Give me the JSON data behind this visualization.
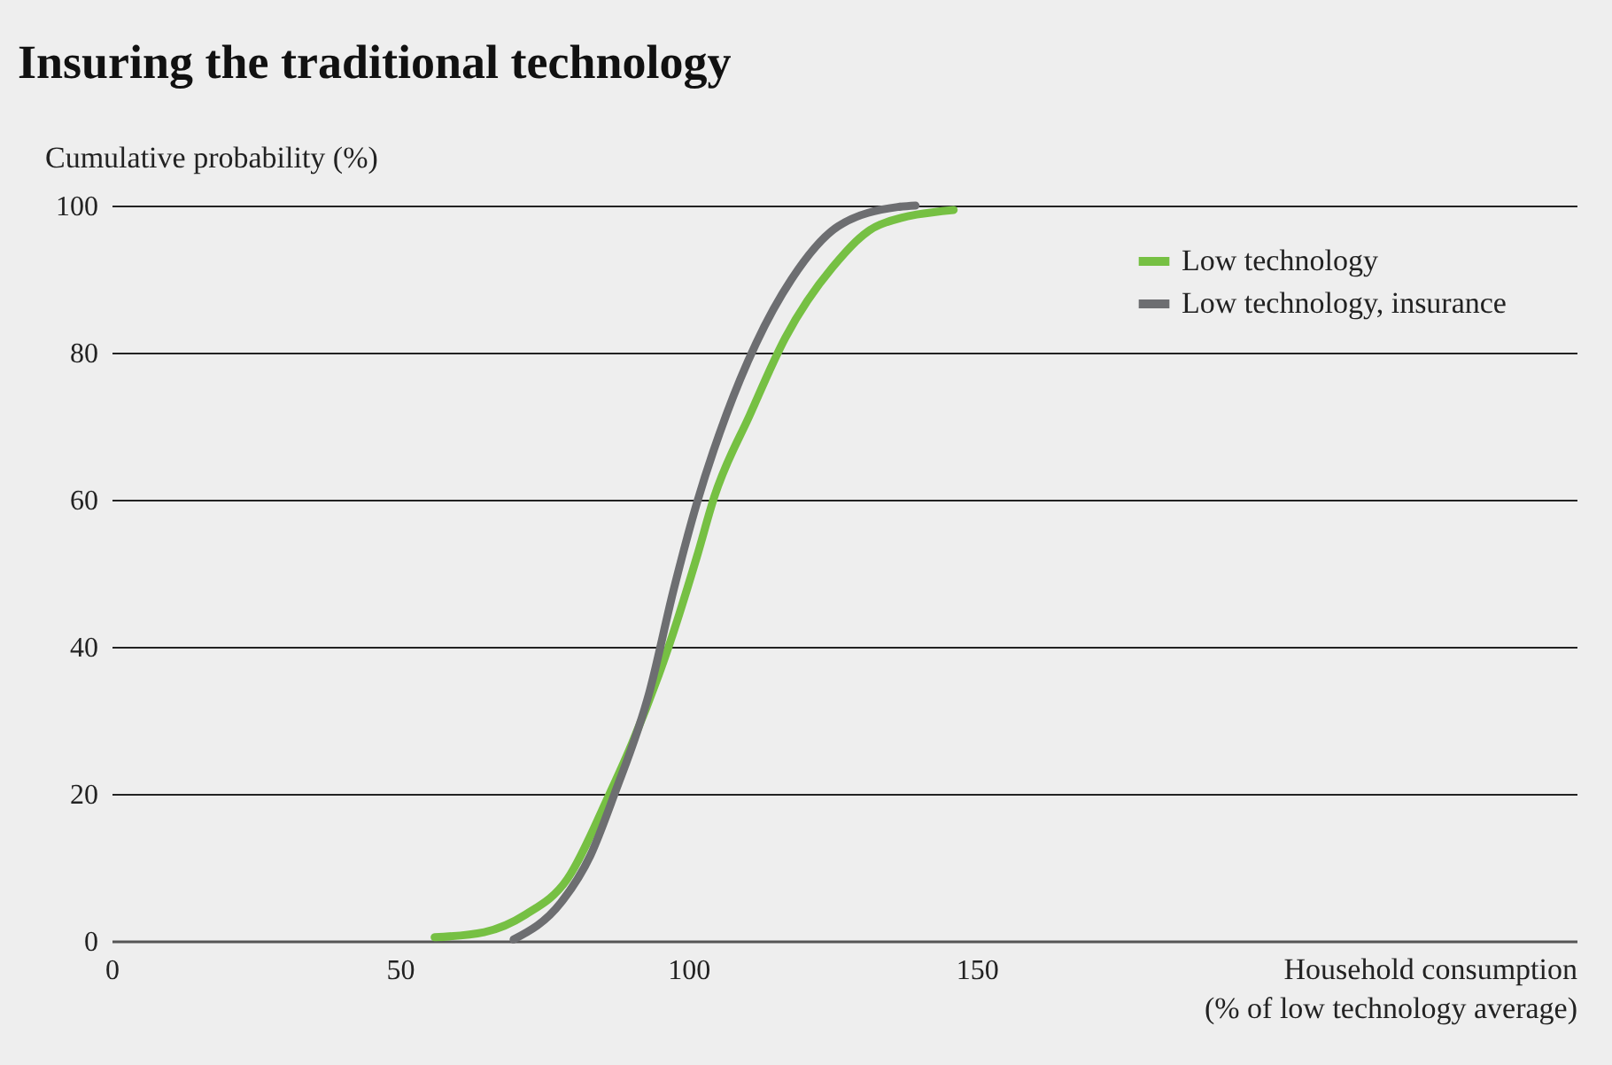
{
  "chart_data": {
    "type": "line",
    "title": "Insuring the traditional technology",
    "ylabel": "Cumulative probability (%)",
    "xlabel": "Household consumption\n(% of low technology average)",
    "xlim": [
      0,
      254
    ],
    "xticks": [
      0,
      50,
      100,
      150
    ],
    "ylim": [
      0,
      100
    ],
    "yticks": [
      0,
      20,
      40,
      60,
      80,
      100
    ],
    "grid": "y",
    "legend": "top right",
    "marker": "none",
    "line_style": "solid",
    "series": [
      {
        "name": "Low technology",
        "color": "#76c043",
        "x": [
          56,
          64.6,
          71.8,
          79,
          86.1,
          90.2,
          96.4,
          101.5,
          104.5,
          110.7,
          116.8,
          125,
          133.2,
          146
        ],
        "values": [
          0.5,
          1.2,
          3.6,
          8.4,
          19.6,
          26.8,
          39.6,
          52.3,
          60.4,
          71.6,
          82,
          91.6,
          97.4,
          99.4
        ]
      },
      {
        "name": "Low technology, insurance",
        "color": "#6d6e71",
        "x": [
          69.7,
          77.9,
          83,
          87.2,
          93.3,
          97.4,
          101.5,
          106.6,
          111.7,
          117.9,
          126,
          136.3,
          139.4
        ],
        "values": [
          0.2,
          5.2,
          11.6,
          20,
          34,
          47.6,
          59.6,
          71.6,
          81.2,
          90,
          97.2,
          99.8,
          100
        ]
      }
    ]
  }
}
